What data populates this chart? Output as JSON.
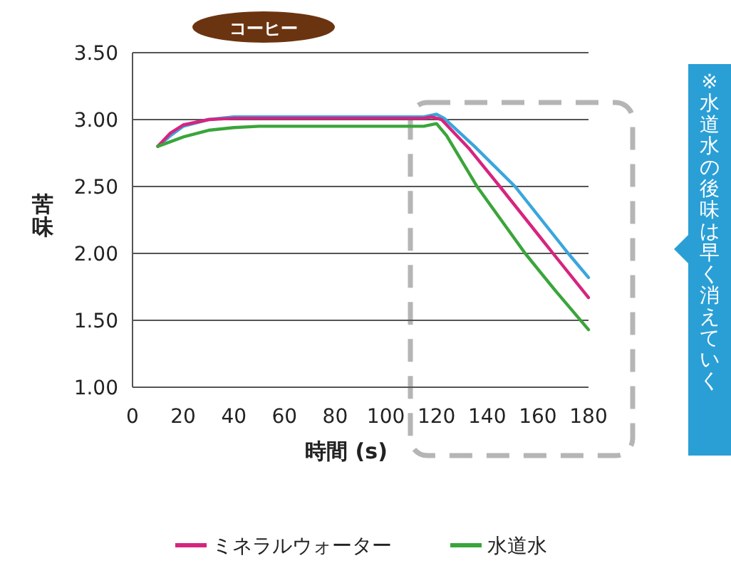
{
  "chart_data": {
    "type": "line",
    "title": "コーヒー",
    "xlabel": "時間 (s)",
    "ylabel": "苦味",
    "annotations": [
      "※水道水の後味は早く消えていく"
    ],
    "xlim": [
      0,
      180
    ],
    "xticks": [
      0,
      20,
      40,
      60,
      80,
      100,
      120,
      140,
      160,
      180
    ],
    "ylim": [
      1.0,
      3.5
    ],
    "yticks": [
      {
        "value": 1.0,
        "label": "1.00"
      },
      {
        "value": 1.5,
        "label": "1.50"
      },
      {
        "value": 2.0,
        "label": "2.00"
      },
      {
        "value": 2.5,
        "label": "2.50"
      },
      {
        "value": 3.0,
        "label": "3.00"
      },
      {
        "value": 3.5,
        "label": "3.50"
      }
    ],
    "grid": "y",
    "legend": "bottom",
    "marker": "none",
    "line_style": "solid",
    "series": [
      {
        "color": "#3aa6dd",
        "x": [
          10,
          15,
          20,
          30,
          40,
          115,
          120,
          123,
          135,
          151,
          172,
          180
        ],
        "values": [
          2.8,
          2.88,
          2.95,
          3.0,
          3.02,
          3.02,
          3.04,
          3.01,
          2.8,
          2.5,
          2.0,
          1.82
        ]
      },
      {
        "name": "ミネラルウォーター",
        "color": "#d6247f",
        "x": [
          10,
          15,
          20,
          30,
          40,
          115,
          118,
          122,
          133,
          145,
          166,
          180
        ],
        "values": [
          2.8,
          2.9,
          2.96,
          3.0,
          3.01,
          3.01,
          3.02,
          3.0,
          2.78,
          2.5,
          2.0,
          1.67
        ]
      },
      {
        "name": "水道水",
        "color": "#3aa53a",
        "x": [
          10,
          20,
          30,
          40,
          50,
          115,
          120,
          124,
          136,
          155,
          167,
          180
        ],
        "values": [
          2.8,
          2.87,
          2.92,
          2.94,
          2.95,
          2.95,
          2.97,
          2.88,
          2.5,
          2.0,
          1.72,
          1.43
        ]
      }
    ]
  }
}
